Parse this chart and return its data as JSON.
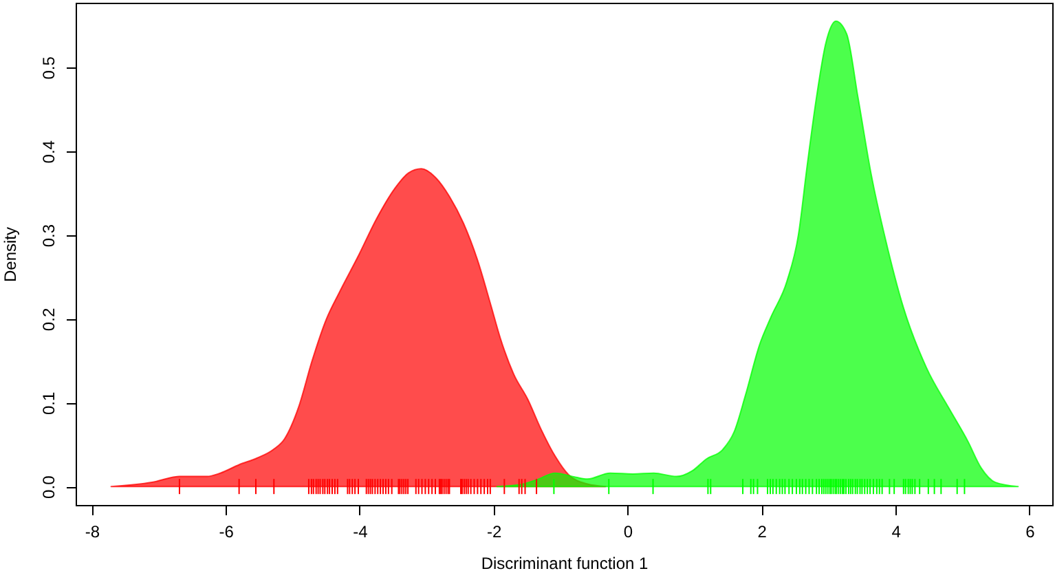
{
  "chart_data": {
    "type": "area",
    "xlabel": "Discriminant function 1",
    "ylabel": "Density",
    "xlim": [
      -8.24,
      6.34
    ],
    "ylim": [
      -0.022,
      0.577
    ],
    "xticks": [
      -8,
      -6,
      -4,
      -2,
      0,
      2,
      4,
      6
    ],
    "yticks": [
      {
        "value": 0,
        "label": "0.0"
      },
      0.1,
      0.2,
      0.3,
      0.4,
      0.5
    ],
    "series": [
      {
        "color": "#ff0000",
        "x": [
          -7.71,
          -7.1,
          -6.69,
          -6.28,
          -6.08,
          -5.8,
          -5.53,
          -5.29,
          -5.12,
          -4.91,
          -4.71,
          -4.5,
          -4.3,
          -4.02,
          -3.75,
          -3.48,
          -3.27,
          -3.08,
          -2.86,
          -2.66,
          -2.45,
          -2.24,
          -2.04,
          -1.9,
          -1.7,
          -1.49,
          -1.29,
          -1.08,
          -0.88,
          -0.6,
          -0.33
        ],
        "values": [
          0.0,
          0.005,
          0.012,
          0.012,
          0.016,
          0.026,
          0.034,
          0.044,
          0.057,
          0.095,
          0.15,
          0.199,
          0.232,
          0.275,
          0.319,
          0.355,
          0.374,
          0.379,
          0.368,
          0.346,
          0.314,
          0.27,
          0.216,
          0.177,
          0.134,
          0.104,
          0.068,
          0.036,
          0.014,
          0.003,
          0.0
        ]
      },
      {
        "color": "#00ff00",
        "x": [
          -1.95,
          -1.56,
          -1.36,
          -1.08,
          -0.77,
          -0.6,
          -0.26,
          0.08,
          0.39,
          0.73,
          0.97,
          1.18,
          1.42,
          1.59,
          1.76,
          1.97,
          2.14,
          2.38,
          2.55,
          2.68,
          2.82,
          2.96,
          3.11,
          3.27,
          3.44,
          3.64,
          3.85,
          4.12,
          4.46,
          4.8,
          5.08,
          5.28,
          5.49,
          5.83
        ],
        "values": [
          0.0,
          0.003,
          0.008,
          0.016,
          0.011,
          0.009,
          0.016,
          0.015,
          0.016,
          0.012,
          0.019,
          0.033,
          0.044,
          0.065,
          0.109,
          0.169,
          0.202,
          0.245,
          0.3,
          0.382,
          0.464,
          0.529,
          0.555,
          0.54,
          0.464,
          0.371,
          0.295,
          0.213,
          0.142,
          0.093,
          0.054,
          0.022,
          0.005,
          0.0
        ]
      },
      {
        "type": "scatter",
        "color": "#ff0000",
        "x": [
          -6.69,
          -5.8,
          -5.55,
          -5.28,
          -4.76,
          -4.72,
          -4.69,
          -4.65,
          -4.62,
          -4.59,
          -4.55,
          -4.52,
          -4.48,
          -4.45,
          -4.41,
          -4.37,
          -4.33,
          -4.18,
          -4.15,
          -4.11,
          -4.07,
          -4.02,
          -3.9,
          -3.87,
          -3.84,
          -3.81,
          -3.77,
          -3.73,
          -3.69,
          -3.65,
          -3.61,
          -3.57,
          -3.52,
          -3.42,
          -3.4,
          -3.37,
          -3.34,
          -3.31,
          -3.28,
          -3.16,
          -3.12,
          -3.07,
          -3.02,
          -2.97,
          -2.92,
          -2.87,
          -2.81,
          -2.79,
          -2.77,
          -2.74,
          -2.71,
          -2.68,
          -2.66,
          -2.49,
          -2.47,
          -2.44,
          -2.41,
          -2.38,
          -2.34,
          -2.29,
          -2.24,
          -2.19,
          -2.14,
          -2.09,
          -2.05,
          -1.84,
          -1.62,
          -1.58,
          -1.53,
          -1.36
        ],
        "values": [
          0,
          0,
          0,
          0,
          0,
          0,
          0,
          0,
          0,
          0,
          0,
          0,
          0,
          0,
          0,
          0,
          0,
          0,
          0,
          0,
          0,
          0,
          0,
          0,
          0,
          0,
          0,
          0,
          0,
          0,
          0,
          0,
          0,
          0,
          0,
          0,
          0,
          0,
          0,
          0,
          0,
          0,
          0,
          0,
          0,
          0,
          0,
          0,
          0,
          0,
          0,
          0,
          0,
          0,
          0,
          0,
          0,
          0,
          0,
          0,
          0,
          0,
          0,
          0,
          0,
          0,
          0,
          0,
          0,
          0
        ]
      },
      {
        "type": "scatter",
        "color": "#00ff00",
        "x": [
          -1.1,
          -0.28,
          0.38,
          1.2,
          1.24,
          1.72,
          1.84,
          1.88,
          1.94,
          2.09,
          2.13,
          2.17,
          2.22,
          2.27,
          2.31,
          2.35,
          2.41,
          2.46,
          2.52,
          2.57,
          2.61,
          2.66,
          2.71,
          2.76,
          2.82,
          2.86,
          2.9,
          2.93,
          2.96,
          2.99,
          3.02,
          3.04,
          3.07,
          3.1,
          3.12,
          3.15,
          3.18,
          3.21,
          3.23,
          3.26,
          3.3,
          3.33,
          3.36,
          3.4,
          3.43,
          3.47,
          3.5,
          3.54,
          3.58,
          3.62,
          3.67,
          3.72,
          3.76,
          3.8,
          3.91,
          3.98,
          4.12,
          4.15,
          4.19,
          4.22,
          4.25,
          4.29,
          4.36,
          4.49,
          4.58,
          4.68,
          4.92,
          5.03
        ],
        "values": [
          0,
          0,
          0,
          0,
          0,
          0,
          0,
          0,
          0,
          0,
          0,
          0,
          0,
          0,
          0,
          0,
          0,
          0,
          0,
          0,
          0,
          0,
          0,
          0,
          0,
          0,
          0,
          0,
          0,
          0,
          0,
          0,
          0,
          0,
          0,
          0,
          0,
          0,
          0,
          0,
          0,
          0,
          0,
          0,
          0,
          0,
          0,
          0,
          0,
          0,
          0,
          0,
          0,
          0,
          0,
          0,
          0,
          0,
          0,
          0,
          0,
          0,
          0,
          0,
          0,
          0,
          0,
          0
        ]
      }
    ]
  }
}
